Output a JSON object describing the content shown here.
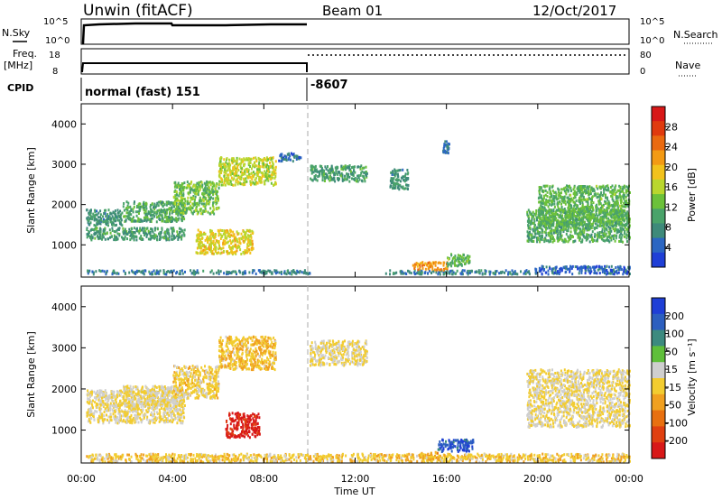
{
  "header": {
    "site": "Unwin (fitACF)",
    "beam": "Beam 01",
    "date": "12/Oct/2017"
  },
  "params": {
    "nsky_label": "N.Sky",
    "nsky_ticks": [
      "10^5",
      "10^0"
    ],
    "nsearch_label": "N.Search",
    "freq_label": [
      "Freq.",
      "[MHz]"
    ],
    "freq_ticks": [
      "18",
      "8"
    ],
    "nave_label": "Nave",
    "nave_ticks": [
      "80",
      "0"
    ],
    "cpid_label": "CPID",
    "cpid_values": [
      "normal (fast) 151",
      "-8607"
    ]
  },
  "colors": {
    "power": [
      "#1f3fd6",
      "#2b66c2",
      "#3e8a7a",
      "#4aa36a",
      "#6cc13a",
      "#b9d62e",
      "#f2c21c",
      "#f39a14",
      "#ea6a10",
      "#e03a0e",
      "#d81818"
    ],
    "velocity": [
      "#1f3fd6",
      "#2c5fbf",
      "#3c8a7f",
      "#5fbf3a",
      "#cfcfcf",
      "#f2cc30",
      "#f0a020",
      "#e87010",
      "#e04010",
      "#d81818"
    ]
  },
  "chart_data": [
    {
      "type": "heatmap",
      "name": "Power",
      "x_ticks": [
        "00:00",
        "04:00",
        "08:00",
        "12:00",
        "16:00",
        "20:00",
        "00:00"
      ],
      "xlim": [
        0,
        24
      ],
      "ylim": [
        200,
        4500
      ],
      "y_ticks": [
        1000,
        2000,
        3000,
        4000
      ],
      "ylabel": "Slant Range [km]",
      "colorbar_label": "Power [dB]",
      "colorbar_ticks": [
        "28",
        "24",
        "20",
        "16",
        "12",
        "8",
        "4"
      ],
      "clim": [
        0,
        30
      ],
      "regions": [
        {
          "t": [
            0.2,
            10.0
          ],
          "r": [
            300,
            400
          ],
          "v": 6
        },
        {
          "t": [
            0.2,
            1.8
          ],
          "r": [
            1500,
            1900
          ],
          "v": 8
        },
        {
          "t": [
            0.2,
            4.5
          ],
          "r": [
            1150,
            1450
          ],
          "v": 9
        },
        {
          "t": [
            1.8,
            4.5
          ],
          "r": [
            1600,
            2100
          ],
          "v": 10
        },
        {
          "t": [
            4.0,
            6.0
          ],
          "r": [
            1800,
            2600
          ],
          "v": 12
        },
        {
          "t": [
            6.0,
            8.5
          ],
          "r": [
            2500,
            3200
          ],
          "v": 15
        },
        {
          "t": [
            5.0,
            7.5
          ],
          "r": [
            800,
            1400
          ],
          "v": 17
        },
        {
          "t": [
            8.6,
            9.6
          ],
          "r": [
            3100,
            3300
          ],
          "v": 5
        },
        {
          "t": [
            10.0,
            12.5
          ],
          "r": [
            2600,
            3000
          ],
          "v": 9
        },
        {
          "t": [
            13.5,
            14.3
          ],
          "r": [
            2400,
            2900
          ],
          "v": 8
        },
        {
          "t": [
            15.8,
            16.1
          ],
          "r": [
            3300,
            3600
          ],
          "v": 5
        },
        {
          "t": [
            13.3,
            19.7
          ],
          "r": [
            300,
            400
          ],
          "v": 6
        },
        {
          "t": [
            14.5,
            16.0
          ],
          "r": [
            400,
            600
          ],
          "v": 21
        },
        {
          "t": [
            16.0,
            17.0
          ],
          "r": [
            500,
            800
          ],
          "v": 11
        },
        {
          "t": [
            19.5,
            24.0
          ],
          "r": [
            1100,
            1900
          ],
          "v": 10
        },
        {
          "t": [
            20.0,
            24.0
          ],
          "r": [
            1500,
            2500
          ],
          "v": 11
        },
        {
          "t": [
            19.8,
            24.0
          ],
          "r": [
            300,
            500
          ],
          "v": 4
        }
      ]
    },
    {
      "type": "heatmap",
      "name": "Velocity",
      "x_ticks": [
        "00:00",
        "04:00",
        "08:00",
        "12:00",
        "16:00",
        "20:00",
        "00:00"
      ],
      "xlim": [
        0,
        24
      ],
      "xlabel": "Time UT",
      "ylim": [
        200,
        4500
      ],
      "y_ticks": [
        1000,
        2000,
        3000,
        4000
      ],
      "ylabel": "Slant Range [km]",
      "colorbar_label": "Velocity [m s⁻¹]",
      "colorbar_ticks": [
        "200",
        "100",
        "50",
        "15",
        "-15",
        "-50",
        "-100",
        "-200"
      ],
      "clim": [
        -250,
        250
      ],
      "regions": [
        {
          "t": [
            0.2,
            4.5
          ],
          "r": [
            1200,
            2000
          ],
          "v": 0
        },
        {
          "t": [
            1.8,
            4.5
          ],
          "r": [
            1600,
            2100
          ],
          "v": 5
        },
        {
          "t": [
            4.0,
            6.0
          ],
          "r": [
            1800,
            2600
          ],
          "v": -20
        },
        {
          "t": [
            6.0,
            8.5
          ],
          "r": [
            2500,
            3300
          ],
          "v": -40
        },
        {
          "t": [
            6.3,
            7.8
          ],
          "r": [
            850,
            1450
          ],
          "v": -220
        },
        {
          "t": [
            10.0,
            12.5
          ],
          "r": [
            2600,
            3200
          ],
          "v": 0
        },
        {
          "t": [
            14.8,
            15.6
          ],
          "r": [
            350,
            500
          ],
          "v": -60
        },
        {
          "t": [
            15.6,
            17.2
          ],
          "r": [
            500,
            800
          ],
          "v": 190
        },
        {
          "t": [
            19.5,
            24.0
          ],
          "r": [
            1100,
            2500
          ],
          "v": 0
        },
        {
          "t": [
            0.2,
            24.0
          ],
          "r": [
            250,
            450
          ],
          "v": -30
        }
      ]
    }
  ]
}
